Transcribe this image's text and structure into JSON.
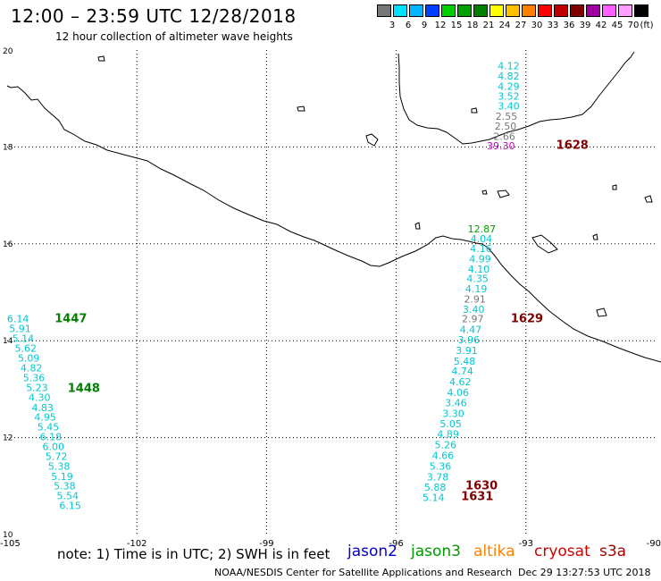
{
  "header": {
    "title": "12:00 – 23:59 UTC 12/28/2018",
    "subtitle": "12 hour collection of altimeter wave heights"
  },
  "colorbar": {
    "unit": "(ft)",
    "colors": [
      "#777777",
      "#00e0ff",
      "#00b4ff",
      "#0040ff",
      "#00d000",
      "#00a000",
      "#008000",
      "#ffff00",
      "#ffc000",
      "#ff8000",
      "#ff0000",
      "#c00000",
      "#800000",
      "#a000a0",
      "#ff60ff",
      "#ffa0ff",
      "#000000"
    ],
    "labels": [
      "3",
      "6",
      "9",
      "12",
      "15",
      "18",
      "21",
      "24",
      "27",
      "30",
      "33",
      "36",
      "39",
      "42",
      "45",
      "70"
    ]
  },
  "map": {
    "lon_labels": [
      "-105",
      "-102",
      "-99",
      "-96",
      "-93",
      "-90"
    ],
    "lat_labels": [
      "20",
      "18",
      "16",
      "14",
      "12",
      "10"
    ]
  },
  "wave_heights": [
    {
      "lon": -93.4,
      "lat": 19.6,
      "value": "4.12",
      "color": "#00c8d0"
    },
    {
      "lon": -93.4,
      "lat": 19.39,
      "value": "4.82",
      "color": "#00c8d0"
    },
    {
      "lon": -93.4,
      "lat": 19.18,
      "value": "4.29",
      "color": "#00c8d0"
    },
    {
      "lon": -93.4,
      "lat": 18.98,
      "value": "3.52",
      "color": "#00c8d0"
    },
    {
      "lon": -93.4,
      "lat": 18.77,
      "value": "3.40",
      "color": "#00c8d0"
    },
    {
      "lon": -93.45,
      "lat": 18.56,
      "value": "2.55",
      "color": "#777777"
    },
    {
      "lon": -93.47,
      "lat": 18.36,
      "value": "2.50",
      "color": "#777777"
    },
    {
      "lon": -93.5,
      "lat": 18.15,
      "value": "2.66",
      "color": "#777777"
    },
    {
      "lon": -93.58,
      "lat": 17.95,
      "value": "39.30",
      "color": "#c000c0"
    },
    {
      "lon": -94.02,
      "lat": 16.24,
      "value": "12.87",
      "color": "#00a000"
    },
    {
      "lon": -94.03,
      "lat": 16.03,
      "value": "4.04",
      "color": "#00c8d0"
    },
    {
      "lon": -94.04,
      "lat": 15.83,
      "value": "4.16",
      "color": "#00c8d0"
    },
    {
      "lon": -94.06,
      "lat": 15.62,
      "value": "4.99",
      "color": "#00c8d0"
    },
    {
      "lon": -94.09,
      "lat": 15.41,
      "value": "4.10",
      "color": "#00c8d0"
    },
    {
      "lon": -94.12,
      "lat": 15.21,
      "value": "4.35",
      "color": "#00c8d0"
    },
    {
      "lon": -94.15,
      "lat": 15.0,
      "value": "4.19",
      "color": "#00c8d0"
    },
    {
      "lon": -94.18,
      "lat": 14.79,
      "value": "2.91",
      "color": "#777777"
    },
    {
      "lon": -94.21,
      "lat": 14.58,
      "value": "3.40",
      "color": "#00c8d0"
    },
    {
      "lon": -94.23,
      "lat": 14.38,
      "value": "2.97",
      "color": "#777777"
    },
    {
      "lon": -94.28,
      "lat": 14.16,
      "value": "4.47",
      "color": "#00c8d0"
    },
    {
      "lon": -94.32,
      "lat": 13.95,
      "value": "3.96",
      "color": "#00c8d0"
    },
    {
      "lon": -94.37,
      "lat": 13.73,
      "value": "3.91",
      "color": "#00c8d0"
    },
    {
      "lon": -94.42,
      "lat": 13.51,
      "value": "5.48",
      "color": "#00c8d0"
    },
    {
      "lon": -94.47,
      "lat": 13.3,
      "value": "4.74",
      "color": "#00c8d0"
    },
    {
      "lon": -94.52,
      "lat": 13.08,
      "value": "4.62",
      "color": "#00c8d0"
    },
    {
      "lon": -94.57,
      "lat": 12.86,
      "value": "4.06",
      "color": "#00c8d0"
    },
    {
      "lon": -94.62,
      "lat": 12.65,
      "value": "3.46",
      "color": "#00c8d0"
    },
    {
      "lon": -94.68,
      "lat": 12.43,
      "value": "3.30",
      "color": "#00c8d0"
    },
    {
      "lon": -94.74,
      "lat": 12.21,
      "value": "5.05",
      "color": "#00c8d0"
    },
    {
      "lon": -94.8,
      "lat": 12.0,
      "value": "4.89",
      "color": "#00c8d0"
    },
    {
      "lon": -94.86,
      "lat": 11.78,
      "value": "5.26",
      "color": "#00c8d0"
    },
    {
      "lon": -94.92,
      "lat": 11.56,
      "value": "4.66",
      "color": "#00c8d0"
    },
    {
      "lon": -94.98,
      "lat": 11.34,
      "value": "5.36",
      "color": "#00c8d0"
    },
    {
      "lon": -95.04,
      "lat": 11.12,
      "value": "3.78",
      "color": "#00c8d0"
    },
    {
      "lon": -95.1,
      "lat": 10.9,
      "value": "5.88",
      "color": "#00c8d0"
    },
    {
      "lon": -95.14,
      "lat": 10.69,
      "value": "5.14",
      "color": "#00c8d0"
    },
    {
      "lon": -104.75,
      "lat": 14.38,
      "value": "6.14",
      "color": "#00c8d0"
    },
    {
      "lon": -104.7,
      "lat": 14.18,
      "value": "5.91",
      "color": "#00c8d0"
    },
    {
      "lon": -104.63,
      "lat": 13.98,
      "value": "5.14",
      "color": "#00c8d0"
    },
    {
      "lon": -104.57,
      "lat": 13.77,
      "value": "5.62",
      "color": "#00c8d0"
    },
    {
      "lon": -104.5,
      "lat": 13.57,
      "value": "5.09",
      "color": "#00c8d0"
    },
    {
      "lon": -104.44,
      "lat": 13.37,
      "value": "4.82",
      "color": "#00c8d0"
    },
    {
      "lon": -104.38,
      "lat": 13.16,
      "value": "5.36",
      "color": "#00c8d0"
    },
    {
      "lon": -104.31,
      "lat": 12.96,
      "value": "5.23",
      "color": "#00c8d0"
    },
    {
      "lon": -104.25,
      "lat": 12.76,
      "value": "4.30",
      "color": "#00c8d0"
    },
    {
      "lon": -104.18,
      "lat": 12.55,
      "value": "4.83",
      "color": "#00c8d0"
    },
    {
      "lon": -104.12,
      "lat": 12.35,
      "value": "4.95",
      "color": "#00c8d0"
    },
    {
      "lon": -104.05,
      "lat": 12.15,
      "value": "5.45",
      "color": "#00c8d0"
    },
    {
      "lon": -103.99,
      "lat": 11.95,
      "value": "6.18",
      "color": "#00c8d0"
    },
    {
      "lon": -103.93,
      "lat": 11.74,
      "value": "6.00",
      "color": "#00c8d0"
    },
    {
      "lon": -103.86,
      "lat": 11.54,
      "value": "5.72",
      "color": "#00c8d0"
    },
    {
      "lon": -103.8,
      "lat": 11.34,
      "value": "5.38",
      "color": "#00c8d0"
    },
    {
      "lon": -103.73,
      "lat": 11.13,
      "value": "5.19",
      "color": "#00c8d0"
    },
    {
      "lon": -103.67,
      "lat": 10.93,
      "value": "5.38",
      "color": "#00c8d0"
    },
    {
      "lon": -103.6,
      "lat": 10.73,
      "value": "5.54",
      "color": "#00c8d0"
    },
    {
      "lon": -103.54,
      "lat": 10.53,
      "value": "6.15",
      "color": "#00c8d0"
    }
  ],
  "pass_times": [
    {
      "lon": -92.3,
      "lat": 17.96,
      "value": "1628",
      "color": "#800000"
    },
    {
      "lon": -93.35,
      "lat": 14.38,
      "value": "1629",
      "color": "#800000"
    },
    {
      "lon": -94.4,
      "lat": 10.93,
      "value": "1630",
      "color": "#800000"
    },
    {
      "lon": -94.5,
      "lat": 10.71,
      "value": "1631",
      "color": "#800000"
    },
    {
      "lon": -103.9,
      "lat": 14.38,
      "value": "1447",
      "color": "#008000"
    },
    {
      "lon": -103.6,
      "lat": 12.94,
      "value": "1448",
      "color": "#008000"
    }
  ],
  "footer": {
    "note": "note:  1) Time is in UTC;  2) SWH is in feet",
    "missions": [
      {
        "name": "jason2",
        "color": "#0000cc"
      },
      {
        "name": "jason3",
        "color": "#009900"
      },
      {
        "name": "altika",
        "color": "#ff8000"
      },
      {
        "name": "cryosat",
        "color": "#cc0000"
      },
      {
        "name": "s3a",
        "color": "#990000"
      }
    ],
    "credit": "NOAA/NESDIS Center for Satellite Applications and Research",
    "timestamp": "Dec 29 13:27:53 UTC 2018"
  }
}
